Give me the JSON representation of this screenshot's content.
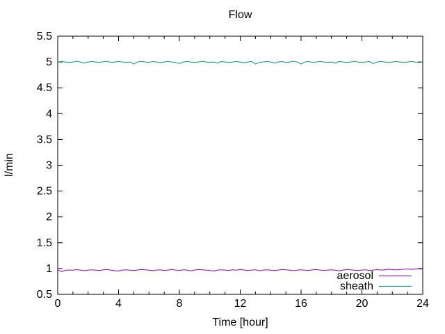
{
  "chart_data": {
    "type": "line",
    "title": "Flow",
    "xlabel": "Time [hour]",
    "ylabel": "l/min",
    "xlim": [
      0,
      24
    ],
    "ylim": [
      0.5,
      5.5
    ],
    "xticks": {
      "values": [
        0,
        4,
        8,
        12,
        16,
        20,
        24
      ],
      "labels": [
        "0",
        "4",
        "8",
        "12",
        "16",
        "20",
        "24"
      ]
    },
    "x_minor_step": 1,
    "yticks": {
      "values": [
        0.5,
        1,
        1.5,
        2,
        2.5,
        3,
        3.5,
        4,
        4.5,
        5,
        5.5
      ],
      "labels": [
        "0.5",
        "1",
        "1.5",
        "2",
        "2.5",
        "3",
        "3.5",
        "4",
        "4.5",
        "5",
        "5.5"
      ]
    },
    "grid": false,
    "legend_position": "inside-bottom-right",
    "axis_color": "#000000",
    "x_step": 0.25,
    "series": [
      {
        "name": "aerosol",
        "color": "#9400d3",
        "values": [
          0.975,
          0.94,
          0.965,
          0.972,
          0.968,
          0.978,
          0.97,
          0.958,
          0.97,
          0.975,
          0.968,
          0.962,
          0.975,
          0.98,
          0.97,
          0.958,
          0.952,
          0.97,
          0.976,
          0.968,
          0.962,
          0.972,
          0.98,
          0.975,
          0.968,
          0.958,
          0.97,
          0.976,
          0.963,
          0.97,
          0.98,
          0.97,
          0.963,
          0.975,
          0.97,
          0.957,
          0.97,
          0.98,
          0.975,
          0.968,
          0.963,
          0.952,
          0.97,
          0.976,
          0.97,
          0.963,
          0.975,
          0.968,
          0.98,
          0.97,
          0.963,
          0.97,
          0.976,
          0.958,
          0.97,
          0.975,
          0.968,
          0.962,
          0.97,
          0.98,
          0.975,
          0.968,
          0.958,
          0.97,
          0.976,
          0.968,
          0.962,
          0.975,
          0.98,
          0.97,
          0.963,
          0.97,
          0.975,
          0.968,
          0.957,
          0.97,
          0.98,
          0.975,
          0.968,
          0.962,
          0.97,
          0.976,
          0.963,
          0.97,
          0.98,
          0.97,
          0.975,
          0.985,
          0.978,
          0.973,
          0.98,
          0.986,
          0.99,
          0.984,
          0.99,
          0.996,
          0.99
        ]
      },
      {
        "name": "sheath",
        "color": "#009e73",
        "values": [
          5.0,
          5.01,
          5.0,
          4.99,
          5.0,
          5.015,
          5.0,
          4.98,
          5.0,
          5.01,
          5.0,
          4.99,
          5.005,
          5.015,
          4.99,
          5.0,
          5.01,
          5.0,
          4.99,
          5.0,
          4.96,
          5.0,
          5.01,
          5.0,
          4.99,
          5.01,
          5.0,
          4.985,
          5.0,
          5.01,
          5.0,
          4.99,
          4.97,
          5.0,
          5.01,
          5.0,
          4.99,
          5.0,
          5.015,
          5.0,
          4.99,
          5.0,
          4.98,
          5.01,
          5.0,
          4.99,
          5.0,
          5.01,
          5.0,
          4.985,
          5.0,
          5.01,
          4.96,
          4.99,
          5.0,
          5.01,
          5.0,
          4.98,
          5.0,
          5.01,
          4.99,
          5.0,
          5.015,
          5.0,
          4.96,
          5.0,
          5.01,
          4.99,
          5.0,
          5.01,
          5.0,
          4.99,
          5.0,
          4.98,
          5.01,
          5.0,
          4.99,
          5.0,
          5.015,
          5.0,
          4.99,
          5.0,
          5.01,
          4.97,
          5.0,
          5.01,
          5.0,
          4.99,
          5.0,
          5.01,
          5.0,
          4.99,
          5.0,
          5.01,
          5.0,
          4.99,
          5.0
        ]
      }
    ]
  }
}
